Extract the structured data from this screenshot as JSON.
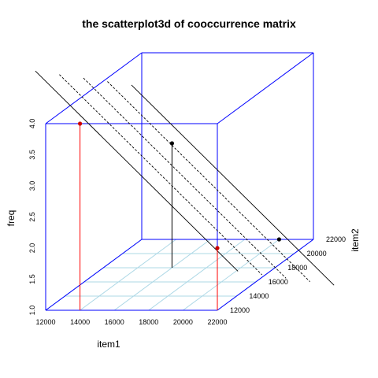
{
  "chart_data": {
    "type": "scatter",
    "title": "the scatterplot3d of cooccurrence matrix",
    "xlabel": "item1",
    "ylabel": "item2",
    "zlabel": "freq",
    "xlim": [
      12000,
      22000
    ],
    "ylim": [
      12000,
      22000
    ],
    "zlim": [
      1.0,
      4.0
    ],
    "x_ticks": [
      "12000",
      "14000",
      "16000",
      "18000",
      "20000",
      "22000"
    ],
    "y_ticks": [
      "12000",
      "14000",
      "16000",
      "18000",
      "20000",
      "22000"
    ],
    "z_ticks": [
      "1.0",
      "1.5",
      "2.0",
      "2.5",
      "3.0",
      "3.5",
      "4.0"
    ],
    "grid": true,
    "box_color": "#0000ff",
    "grid_color": "#add8e6",
    "points": [
      {
        "item1": 14000,
        "item2": 12000,
        "freq": 4.0,
        "color": "#cc0000",
        "stem_color": "#ff0000"
      },
      {
        "item1": 16000,
        "item2": 18000,
        "freq": 3.0,
        "color": "#000000",
        "stem_color": "#000000"
      },
      {
        "item1": 22000,
        "item2": 12000,
        "freq": 2.0,
        "color": "#cc0000",
        "stem_color": "#ff0000"
      },
      {
        "item1": 20000,
        "item2": 22000,
        "freq": 1.0,
        "color": "#000000",
        "stem_color": "#000000"
      }
    ],
    "regression_plane": true
  }
}
